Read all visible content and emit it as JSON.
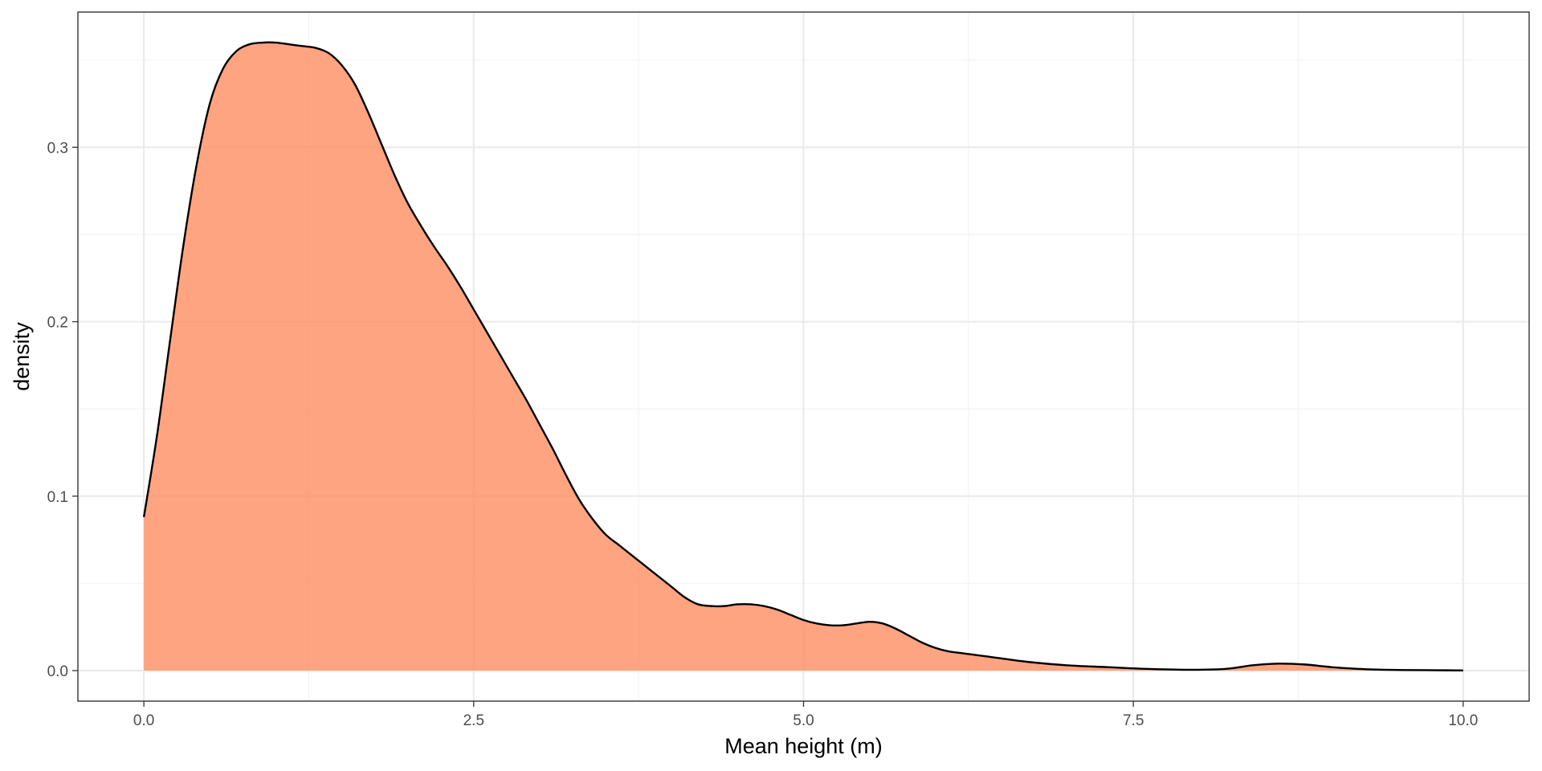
{
  "chart_data": {
    "type": "area",
    "title": "",
    "xlabel": "Mean height (m)",
    "ylabel": "density",
    "xlim": [
      -0.5,
      10.5
    ],
    "ylim": [
      -0.0175,
      0.3775
    ],
    "x_ticks": [
      0.0,
      2.5,
      5.0,
      7.5,
      10.0
    ],
    "x_tick_labels": [
      "0.0",
      "2.5",
      "5.0",
      "7.5",
      "10.0"
    ],
    "y_ticks": [
      0.0,
      0.1,
      0.2,
      0.3
    ],
    "y_tick_labels": [
      "0.0",
      "0.1",
      "0.2",
      "0.3"
    ],
    "x_minor_ticks": [
      1.25,
      3.75,
      6.25,
      8.75
    ],
    "y_minor_ticks": [
      0.05,
      0.15,
      0.25,
      0.35
    ],
    "grid": true,
    "legend": "none",
    "fill_color": "#FF8A5E",
    "fill_opacity": 0.78,
    "line_color": "#000000",
    "panel_border_color": "#333333",
    "series": [
      {
        "x": [
          0.0,
          0.1,
          0.2,
          0.3,
          0.4,
          0.5,
          0.6,
          0.7,
          0.8,
          0.9,
          1.0,
          1.1,
          1.2,
          1.3,
          1.4,
          1.5,
          1.6,
          1.7,
          1.8,
          1.9,
          2.0,
          2.1,
          2.2,
          2.3,
          2.4,
          2.5,
          2.6,
          2.7,
          2.8,
          2.9,
          3.0,
          3.1,
          3.2,
          3.3,
          3.4,
          3.5,
          3.6,
          3.7,
          3.8,
          3.9,
          4.0,
          4.1,
          4.2,
          4.3,
          4.4,
          4.5,
          4.6,
          4.7,
          4.8,
          4.9,
          5.0,
          5.1,
          5.2,
          5.3,
          5.4,
          5.5,
          5.6,
          5.7,
          5.8,
          5.9,
          6.0,
          6.1,
          6.2,
          6.3,
          6.4,
          6.5,
          6.7,
          7.0,
          7.3,
          7.6,
          7.9,
          8.2,
          8.4,
          8.6,
          8.8,
          9.0,
          9.2,
          9.4,
          9.6,
          9.8,
          10.0
        ],
        "y": [
          0.088,
          0.135,
          0.19,
          0.244,
          0.29,
          0.325,
          0.345,
          0.355,
          0.359,
          0.36,
          0.36,
          0.359,
          0.358,
          0.357,
          0.354,
          0.347,
          0.336,
          0.32,
          0.302,
          0.284,
          0.268,
          0.255,
          0.243,
          0.232,
          0.22,
          0.207,
          0.194,
          0.181,
          0.168,
          0.155,
          0.141,
          0.127,
          0.112,
          0.098,
          0.087,
          0.078,
          0.072,
          0.066,
          0.06,
          0.054,
          0.048,
          0.042,
          0.038,
          0.037,
          0.037,
          0.038,
          0.038,
          0.037,
          0.035,
          0.032,
          0.029,
          0.027,
          0.026,
          0.026,
          0.027,
          0.028,
          0.027,
          0.024,
          0.02,
          0.016,
          0.013,
          0.011,
          0.01,
          0.009,
          0.008,
          0.007,
          0.005,
          0.003,
          0.002,
          0.001,
          0.0005,
          0.001,
          0.003,
          0.004,
          0.0035,
          0.002,
          0.001,
          0.0005,
          0.0003,
          0.0002,
          0.0001
        ]
      }
    ]
  }
}
